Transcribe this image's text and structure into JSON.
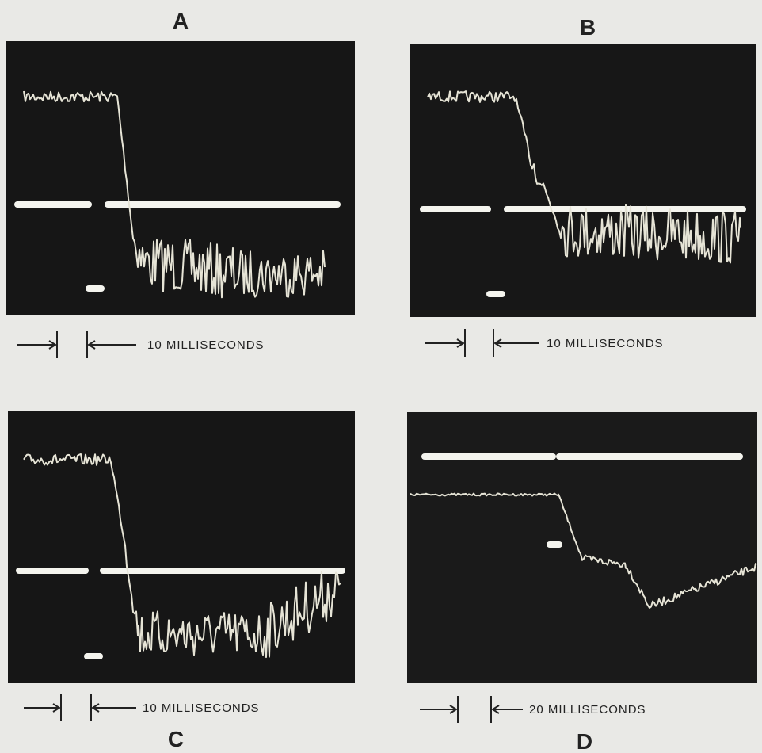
{
  "panels": [
    {
      "label": "A",
      "scale": "10 MILLISECONDS"
    },
    {
      "label": "B",
      "scale": "10 MILLISECONDS"
    },
    {
      "label": "C",
      "scale": "10 MILLISECONDS"
    },
    {
      "label": "D",
      "scale": "20 MILLISECONDS"
    }
  ]
}
